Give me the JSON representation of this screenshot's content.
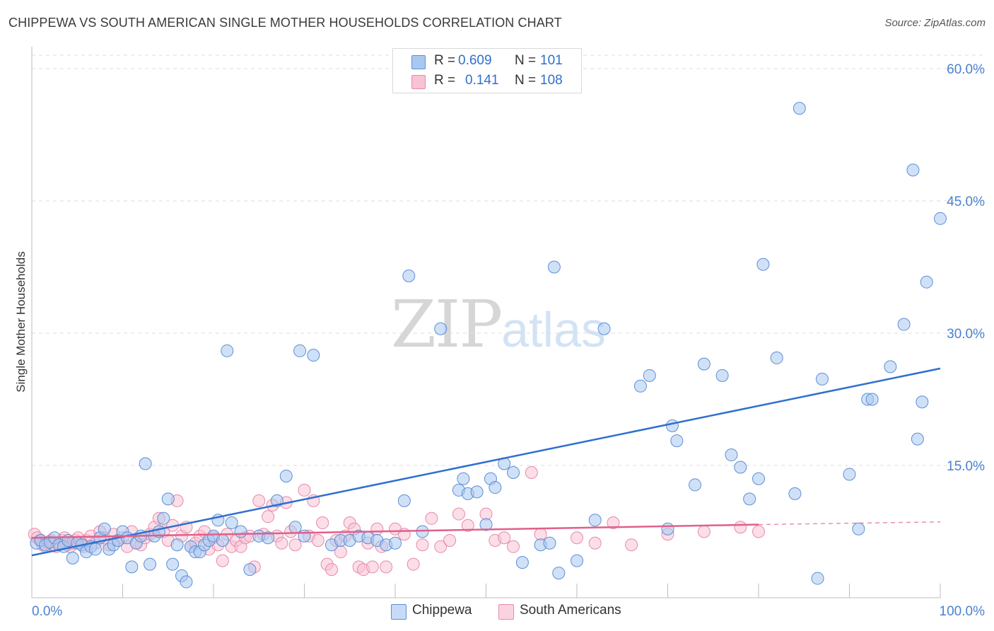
{
  "title": "CHIPPEWA VS SOUTH AMERICAN SINGLE MOTHER HOUSEHOLDS CORRELATION CHART",
  "source": "Source: ZipAtlas.com",
  "watermark": {
    "zip": "ZIP",
    "atlas": "atlas"
  },
  "legend_top": {
    "rows": [
      {
        "r_label": "R =",
        "r_value": "0.609",
        "n_label": "N =",
        "n_value": "101",
        "color": "#a9c8f0",
        "stroke": "#5b8fd6"
      },
      {
        "r_label": "R =",
        "r_value": "0.141",
        "n_label": "N =",
        "n_value": "108",
        "color": "#f8c3d3",
        "stroke": "#e88aaa"
      }
    ]
  },
  "chart_data": {
    "type": "scatter",
    "title": "CHIPPEWA VS SOUTH AMERICAN SINGLE MOTHER HOUSEHOLDS CORRELATION CHART",
    "xlabel": "",
    "ylabel": "Single Mother Households",
    "xlim": [
      0,
      100
    ],
    "ylim": [
      0,
      62
    ],
    "x_tick_labels": [
      "0.0%",
      "100.0%"
    ],
    "y_ticks": [
      15,
      30,
      45,
      60
    ],
    "y_tick_labels": [
      "15.0%",
      "30.0%",
      "45.0%",
      "60.0%"
    ],
    "grid": true,
    "legend": "bottom-center",
    "series": [
      {
        "name": "Chippewa",
        "color": "#a9c8f0",
        "stroke": "#5b8fd6",
        "line_color": "#2f6fcf",
        "trend": {
          "x": [
            0,
            100
          ],
          "y": [
            4.8,
            26.0
          ]
        },
        "points": [
          [
            0.5,
            6.2
          ],
          [
            1,
            6.5
          ],
          [
            1.5,
            6.0
          ],
          [
            2,
            6.3
          ],
          [
            2.5,
            6.8
          ],
          [
            3,
            6.0
          ],
          [
            3.5,
            5.8
          ],
          [
            4,
            6.5
          ],
          [
            4.5,
            4.5
          ],
          [
            5,
            6.2
          ],
          [
            5.5,
            6.0
          ],
          [
            6,
            5.2
          ],
          [
            6.5,
            5.8
          ],
          [
            7,
            5.5
          ],
          [
            7.5,
            6.8
          ],
          [
            8,
            7.8
          ],
          [
            8.5,
            5.5
          ],
          [
            9,
            6.0
          ],
          [
            9.5,
            6.5
          ],
          [
            10,
            7.5
          ],
          [
            10.5,
            6.8
          ],
          [
            11,
            3.5
          ],
          [
            11.5,
            6.2
          ],
          [
            12,
            7.0
          ],
          [
            12.5,
            15.2
          ],
          [
            13,
            3.8
          ],
          [
            13.5,
            7.0
          ],
          [
            14,
            7.5
          ],
          [
            14.5,
            9.0
          ],
          [
            15,
            11.2
          ],
          [
            15.5,
            3.8
          ],
          [
            16,
            6.0
          ],
          [
            16.5,
            2.5
          ],
          [
            17,
            1.8
          ],
          [
            17.5,
            5.8
          ],
          [
            18,
            5.2
          ],
          [
            18.5,
            5.2
          ],
          [
            19,
            6.0
          ],
          [
            19.5,
            6.5
          ],
          [
            20,
            7.0
          ],
          [
            20.5,
            8.8
          ],
          [
            21,
            6.5
          ],
          [
            21.5,
            28.0
          ],
          [
            22,
            8.5
          ],
          [
            23,
            7.5
          ],
          [
            24,
            3.2
          ],
          [
            25,
            7.0
          ],
          [
            26,
            6.8
          ],
          [
            27,
            11.0
          ],
          [
            28,
            13.8
          ],
          [
            29,
            8.0
          ],
          [
            29.5,
            28.0
          ],
          [
            30,
            7.0
          ],
          [
            31,
            27.5
          ],
          [
            33,
            6.0
          ],
          [
            34,
            6.5
          ],
          [
            35,
            6.5
          ],
          [
            36,
            7.0
          ],
          [
            37,
            6.8
          ],
          [
            38,
            6.5
          ],
          [
            39,
            6.0
          ],
          [
            40,
            6.2
          ],
          [
            41,
            11.0
          ],
          [
            41.5,
            36.5
          ],
          [
            43,
            7.5
          ],
          [
            45,
            30.5
          ],
          [
            47,
            12.2
          ],
          [
            47.5,
            13.5
          ],
          [
            48,
            11.8
          ],
          [
            49,
            12.0
          ],
          [
            50,
            8.3
          ],
          [
            50.5,
            13.5
          ],
          [
            51,
            12.5
          ],
          [
            52,
            15.2
          ],
          [
            53,
            14.2
          ],
          [
            54,
            4.0
          ],
          [
            56,
            6.0
          ],
          [
            57,
            6.2
          ],
          [
            57.5,
            37.5
          ],
          [
            58,
            2.8
          ],
          [
            60,
            4.2
          ],
          [
            62,
            8.8
          ],
          [
            63,
            30.5
          ],
          [
            67,
            24.0
          ],
          [
            68,
            25.2
          ],
          [
            70,
            7.8
          ],
          [
            70.5,
            19.5
          ],
          [
            71,
            17.8
          ],
          [
            73,
            12.8
          ],
          [
            74,
            26.5
          ],
          [
            76,
            25.2
          ],
          [
            77,
            16.2
          ],
          [
            78,
            14.8
          ],
          [
            79,
            11.2
          ],
          [
            80,
            13.5
          ],
          [
            80.5,
            37.8
          ],
          [
            82,
            27.2
          ],
          [
            84,
            11.8
          ],
          [
            84.5,
            55.5
          ],
          [
            86.5,
            2.2
          ],
          [
            87,
            24.8
          ],
          [
            90,
            14.0
          ],
          [
            91,
            7.8
          ],
          [
            92,
            22.5
          ],
          [
            92.5,
            22.5
          ],
          [
            94.5,
            26.2
          ],
          [
            96,
            31.0
          ],
          [
            97,
            48.5
          ],
          [
            97.5,
            18.0
          ],
          [
            98,
            22.2
          ],
          [
            98.5,
            35.8
          ],
          [
            100,
            43.0
          ]
        ]
      },
      {
        "name": "South Americans",
        "color": "#f8c3d3",
        "stroke": "#e88aaa",
        "line_color": "#e0608a",
        "trend": {
          "x": [
            0,
            80
          ],
          "y": [
            6.8,
            8.3
          ]
        },
        "trend_dashed": {
          "x": [
            80,
            100
          ],
          "y": [
            8.3,
            8.6
          ]
        },
        "points": [
          [
            0.3,
            7.2
          ],
          [
            0.6,
            6.8
          ],
          [
            0.9,
            6.5
          ],
          [
            1.2,
            6.0
          ],
          [
            1.5,
            5.8
          ],
          [
            1.8,
            6.2
          ],
          [
            2.1,
            6.5
          ],
          [
            2.4,
            6.0
          ],
          [
            2.7,
            5.8
          ],
          [
            3,
            6.2
          ],
          [
            3.3,
            6.5
          ],
          [
            3.6,
            6.8
          ],
          [
            3.9,
            6.0
          ],
          [
            4.2,
            5.8
          ],
          [
            4.5,
            6.2
          ],
          [
            4.8,
            6.5
          ],
          [
            5.1,
            6.8
          ],
          [
            5.4,
            6.2
          ],
          [
            5.7,
            5.8
          ],
          [
            6,
            6.5
          ],
          [
            6.5,
            7.0
          ],
          [
            7,
            6.2
          ],
          [
            7.5,
            7.5
          ],
          [
            8,
            6.8
          ],
          [
            8.5,
            6.0
          ],
          [
            9,
            7.2
          ],
          [
            9.5,
            6.5
          ],
          [
            10,
            6.8
          ],
          [
            10.5,
            5.8
          ],
          [
            11,
            7.5
          ],
          [
            11.5,
            6.2
          ],
          [
            12,
            6.0
          ],
          [
            12.5,
            6.8
          ],
          [
            13,
            7.2
          ],
          [
            13.5,
            8.0
          ],
          [
            14,
            9.0
          ],
          [
            14.5,
            7.5
          ],
          [
            15,
            6.5
          ],
          [
            15.5,
            8.2
          ],
          [
            16,
            11.0
          ],
          [
            16.5,
            7.0
          ],
          [
            17,
            8.0
          ],
          [
            17.5,
            5.8
          ],
          [
            18,
            6.2
          ],
          [
            18.5,
            7.0
          ],
          [
            19,
            7.5
          ],
          [
            19.5,
            5.5
          ],
          [
            20,
            6.8
          ],
          [
            20.5,
            6.0
          ],
          [
            21,
            4.2
          ],
          [
            21.5,
            7.2
          ],
          [
            22,
            5.8
          ],
          [
            22.5,
            6.5
          ],
          [
            23,
            5.8
          ],
          [
            23.5,
            6.8
          ],
          [
            24,
            7.0
          ],
          [
            24.5,
            3.5
          ],
          [
            25,
            11.0
          ],
          [
            25.5,
            7.2
          ],
          [
            26,
            9.2
          ],
          [
            26.5,
            10.5
          ],
          [
            27,
            7.0
          ],
          [
            27.5,
            6.2
          ],
          [
            28,
            10.8
          ],
          [
            28.5,
            7.5
          ],
          [
            29,
            6.0
          ],
          [
            30,
            12.2
          ],
          [
            30.5,
            7.0
          ],
          [
            31,
            11.0
          ],
          [
            31.5,
            6.5
          ],
          [
            32,
            8.5
          ],
          [
            32.5,
            3.8
          ],
          [
            33,
            3.2
          ],
          [
            33.5,
            6.5
          ],
          [
            34,
            5.2
          ],
          [
            34.5,
            7.0
          ],
          [
            35,
            8.5
          ],
          [
            35.5,
            7.8
          ],
          [
            36,
            3.5
          ],
          [
            36.5,
            3.2
          ],
          [
            37,
            6.2
          ],
          [
            37.5,
            3.5
          ],
          [
            38,
            7.8
          ],
          [
            38.5,
            5.8
          ],
          [
            39,
            3.5
          ],
          [
            40,
            7.8
          ],
          [
            41,
            7.2
          ],
          [
            42,
            3.8
          ],
          [
            43,
            6.0
          ],
          [
            44,
            9.0
          ],
          [
            45,
            5.8
          ],
          [
            46,
            6.5
          ],
          [
            47,
            9.5
          ],
          [
            48,
            8.2
          ],
          [
            50,
            9.5
          ],
          [
            51,
            6.5
          ],
          [
            52,
            6.8
          ],
          [
            53,
            5.8
          ],
          [
            55,
            14.2
          ],
          [
            56,
            7.2
          ],
          [
            60,
            6.8
          ],
          [
            62,
            6.2
          ],
          [
            64,
            8.5
          ],
          [
            66,
            6.0
          ],
          [
            70,
            7.2
          ],
          [
            74,
            7.5
          ],
          [
            78,
            8.0
          ],
          [
            80,
            7.5
          ]
        ]
      }
    ]
  },
  "bottom_legend": [
    {
      "label": "Chippewa",
      "color": "#a9c8f0",
      "stroke": "#5b8fd6"
    },
    {
      "label": "South Americans",
      "color": "#f8c3d3",
      "stroke": "#e88aaa"
    }
  ]
}
